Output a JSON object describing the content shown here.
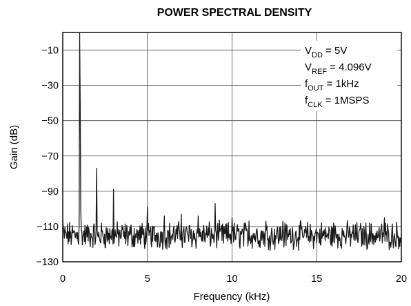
{
  "chart_data": {
    "type": "line",
    "title": "POWER SPECTRAL DENSITY",
    "xlabel": "Frequency (kHz)",
    "ylabel": "Gain (dB)",
    "xlim": [
      0,
      20
    ],
    "ylim": [
      -130,
      0
    ],
    "x_ticks": [
      0,
      5,
      10,
      15,
      20
    ],
    "x_tick_labels": [
      "0",
      "5",
      "10",
      "15",
      "20"
    ],
    "y_ticks": [
      -10,
      -30,
      -50,
      -70,
      -90,
      -110,
      -130
    ],
    "y_tick_labels": [
      "−10",
      "−30",
      "−50",
      "−70",
      "−90",
      "−110",
      "−130"
    ],
    "grid": true,
    "line_color": "#1a1a1a",
    "annotations": [
      {
        "main": "V",
        "sub": "DD",
        "rest": " = 5V"
      },
      {
        "main": "V",
        "sub": "REF",
        "rest": " = 4.096V"
      },
      {
        "main": "f",
        "sub": "OUT",
        "rest": " = 1kHz"
      },
      {
        "main": "f",
        "sub": "CLK",
        "rest": " = 1MSPS"
      }
    ],
    "series": [
      {
        "noise_floor_db": -115,
        "noise_range_db": [
          -128,
          -106
        ],
        "peaks": [
          {
            "x": 1,
            "y": 0
          },
          {
            "x": 2,
            "y": -77
          },
          {
            "x": 3,
            "y": -89
          },
          {
            "x": 5,
            "y": -99
          },
          {
            "x": 6,
            "y": -104
          },
          {
            "x": 7,
            "y": -103
          },
          {
            "x": 8,
            "y": -104
          },
          {
            "x": 9,
            "y": -97
          },
          {
            "x": 10,
            "y": -105
          },
          {
            "x": 11,
            "y": -107
          },
          {
            "x": 12,
            "y": -107
          },
          {
            "x": 13,
            "y": -107
          },
          {
            "x": 16,
            "y": -108
          },
          {
            "x": 19,
            "y": -105
          }
        ]
      }
    ]
  }
}
